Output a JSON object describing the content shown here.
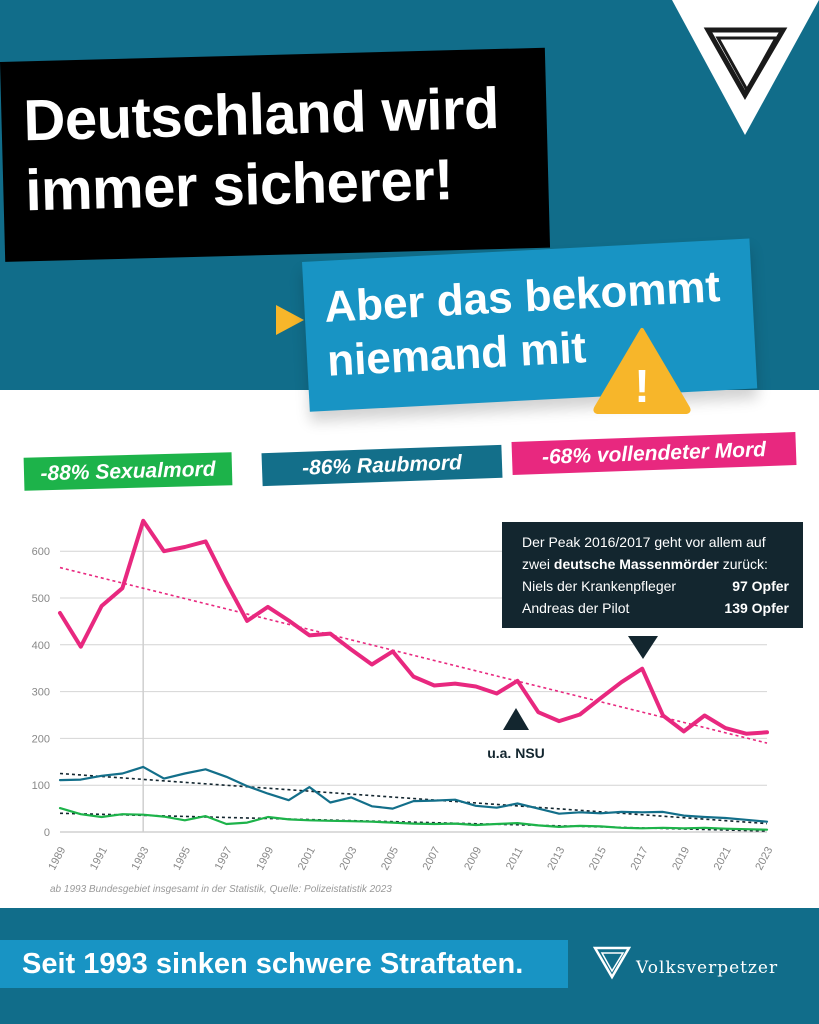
{
  "header": {
    "title_line1": "Deutschland wird",
    "title_line2": "immer sicherer!",
    "subtitle_line1": "Aber das bekommt",
    "subtitle_line2": "niemand mit",
    "warning_mark": "!"
  },
  "legend_chips": {
    "sexualmord": "-88% Sexualmord",
    "raubmord": "-86% Raubmord",
    "mord": "-68% vollendeter Mord"
  },
  "note": {
    "line1": "Der Peak 2016/2017 geht vor allem auf",
    "line2_prefix": "zwei ",
    "line2_bold": "deutsche Massenmörder",
    "line2_suffix": " zurück:",
    "row1_name": "Niels der Krankenpfleger",
    "row1_value": "97 Opfer",
    "row2_name": "Andreas der Pilot",
    "row2_value": "139 Opfer"
  },
  "source": "ab 1993 Bundesgebiet insgesamt in der Statistik,  Quelle: Polizeistatistik 2023",
  "footer": {
    "text": "Seit 1993 sinken schwere Straftaten.",
    "brand": "Volksverpetzer"
  },
  "colors": {
    "mord": "#e8287f",
    "raubmord": "#136f8a",
    "sexualmord": "#1db34a",
    "band": "#116d8a",
    "accent_blue": "#1894c4",
    "marker": "#13262f"
  },
  "icons": [
    "triangle-logo-icon",
    "play-arrow-icon",
    "warning-icon",
    "marker-triangle-up-icon",
    "marker-triangle-down-icon"
  ],
  "chart_data": {
    "type": "line",
    "x": [
      1989,
      1990,
      1991,
      1992,
      1993,
      1994,
      1995,
      1996,
      1997,
      1998,
      1999,
      2000,
      2001,
      2002,
      2003,
      2004,
      2005,
      2006,
      2007,
      2008,
      2009,
      2010,
      2011,
      2012,
      2013,
      2014,
      2015,
      2016,
      2017,
      2018,
      2019,
      2020,
      2021,
      2022,
      2023
    ],
    "xticks": [
      1989,
      1991,
      1993,
      1995,
      1997,
      1999,
      2001,
      2003,
      2005,
      2007,
      2009,
      2011,
      2013,
      2015,
      2017,
      2019,
      2021,
      2023
    ],
    "ylim": [
      0,
      700
    ],
    "yticks": [
      0,
      100,
      200,
      300,
      400,
      500,
      600
    ],
    "grid": true,
    "reference_line_x": 1993,
    "series": [
      {
        "name": "-68% vollendeter Mord",
        "color": "#e8287f",
        "trend": [
          565,
          190
        ],
        "values": [
          468,
          396,
          483,
          521,
          665,
          600,
          609,
          621,
          533,
          451,
          481,
          452,
          420,
          424,
          390,
          358,
          386,
          332,
          313,
          317,
          311,
          296,
          323,
          256,
          237,
          251,
          286,
          320,
          349,
          249,
          215,
          249,
          222,
          210,
          213
        ]
      },
      {
        "name": "-86% Raubmord",
        "color": "#136f8a",
        "trend": [
          125,
          18
        ],
        "values": [
          111,
          112,
          120,
          125,
          139,
          114,
          125,
          134,
          118,
          98,
          82,
          68,
          96,
          63,
          74,
          55,
          50,
          66,
          67,
          69,
          56,
          52,
          61,
          50,
          39,
          42,
          40,
          43,
          42,
          43,
          35,
          32,
          30,
          26,
          22
        ]
      },
      {
        "name": "-88% Sexualmord",
        "color": "#1db34a",
        "trend": [
          40,
          2
        ],
        "values": [
          51,
          38,
          32,
          38,
          37,
          33,
          25,
          34,
          17,
          20,
          32,
          27,
          25,
          24,
          23,
          22,
          20,
          18,
          17,
          18,
          15,
          17,
          19,
          14,
          11,
          13,
          12,
          9,
          8,
          9,
          8,
          9,
          7,
          6,
          5
        ]
      }
    ],
    "annotations": [
      {
        "text": "u.a. NSU",
        "year": 2011
      },
      {
        "year": 2017
      }
    ]
  }
}
